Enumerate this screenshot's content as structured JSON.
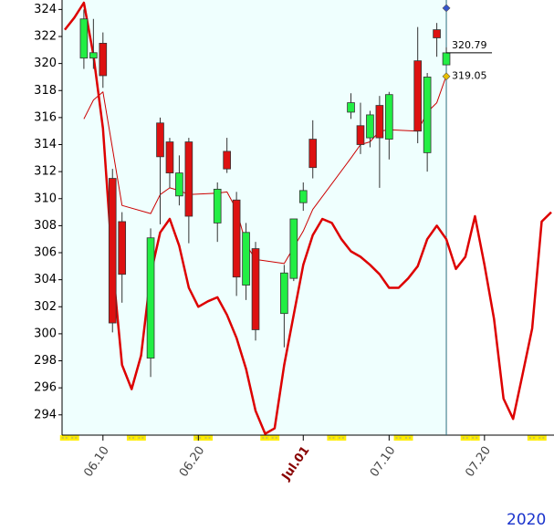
{
  "chart_data": {
    "type": "candlestick",
    "year_label": "2020",
    "x": [
      "2020-06-08",
      "2020-06-09",
      "2020-06-10",
      "2020-06-11",
      "2020-06-12",
      "2020-06-15",
      "2020-06-16",
      "2020-06-17",
      "2020-06-18",
      "2020-06-19",
      "2020-06-22",
      "2020-06-23",
      "2020-06-24",
      "2020-06-25",
      "2020-06-26",
      "2020-06-29",
      "2020-06-30",
      "2020-07-01",
      "2020-07-02",
      "2020-07-06",
      "2020-07-07",
      "2020-07-08",
      "2020-07-09",
      "2020-07-10",
      "2020-07-13",
      "2020-07-14",
      "2020-07-15",
      "2020-07-16"
    ],
    "open": [
      320.4,
      320.4,
      321.5,
      311.5,
      308.3,
      298.2,
      315.6,
      314.2,
      310.2,
      314.2,
      308.2,
      313.5,
      309.9,
      303.6,
      306.3,
      301.5,
      304.1,
      309.7,
      314.4,
      316.4,
      315.4,
      314.5,
      316.9,
      314.4,
      320.2,
      313.4,
      322.5,
      319.9
    ],
    "high": [
      324.0,
      323.3,
      322.3,
      312.2,
      309.0,
      307.8,
      316.0,
      314.5,
      313.2,
      314.5,
      311.2,
      314.5,
      310.5,
      308.2,
      306.8,
      305.1,
      308.5,
      311.2,
      315.8,
      317.8,
      317.1,
      316.5,
      317.6,
      317.9,
      322.7,
      319.3,
      323.0,
      321.2
    ],
    "low": [
      319.6,
      319.6,
      318.2,
      300.1,
      302.3,
      296.8,
      308.1,
      310.8,
      309.5,
      306.7,
      306.8,
      311.9,
      302.8,
      302.5,
      299.5,
      299.0,
      303.9,
      309.1,
      311.5,
      315.9,
      313.3,
      313.8,
      310.8,
      312.9,
      314.1,
      312.0,
      320.5,
      319.9
    ],
    "close": [
      323.3,
      320.8,
      319.1,
      300.8,
      304.4,
      307.1,
      313.1,
      311.9,
      311.9,
      308.7,
      310.7,
      312.2,
      304.2,
      307.5,
      300.3,
      304.5,
      308.5,
      310.6,
      312.3,
      317.1,
      314.0,
      316.2,
      314.5,
      317.7,
      315.0,
      319.0,
      321.9,
      320.79
    ],
    "up_color": "#22ee44",
    "down_color": "#dd1111",
    "overlays": [
      {
        "color": "#cc0000",
        "width": 1,
        "x": [
          "2020-06-08",
          "2020-06-09",
          "2020-06-10",
          "2020-06-11",
          "2020-06-12",
          "2020-06-15",
          "2020-06-16",
          "2020-06-17",
          "2020-06-18",
          "2020-06-19",
          "2020-06-22",
          "2020-06-23",
          "2020-06-24",
          "2020-06-25",
          "2020-06-26",
          "2020-06-29",
          "2020-06-30",
          "2020-07-01",
          "2020-07-02",
          "2020-07-06",
          "2020-07-07",
          "2020-07-08",
          "2020-07-09",
          "2020-07-10",
          "2020-07-13",
          "2020-07-14",
          "2020-07-15",
          "2020-07-16"
        ],
        "values": [
          315.9,
          317.3,
          317.9,
          313.7,
          309.5,
          308.9,
          310.3,
          310.8,
          310.6,
          310.3,
          310.4,
          310.5,
          309.2,
          306.6,
          305.5,
          305.2,
          306.4,
          307.6,
          309.2,
          313.0,
          314.0,
          314.2,
          315.0,
          315.1,
          315.0,
          316.4,
          317.1,
          319.1
        ]
      },
      {
        "color": "#dd0000",
        "width": 2.5,
        "x": [
          "2020-06-06",
          "2020-06-07",
          "2020-06-08",
          "2020-06-09",
          "2020-06-10",
          "2020-06-11",
          "2020-06-12",
          "2020-06-13",
          "2020-06-14",
          "2020-06-15",
          "2020-06-16",
          "2020-06-17",
          "2020-06-18",
          "2020-06-19",
          "2020-06-20",
          "2020-06-21",
          "2020-06-22",
          "2020-06-23",
          "2020-06-24",
          "2020-06-25",
          "2020-06-26",
          "2020-06-27",
          "2020-06-28",
          "2020-06-29",
          "2020-06-30",
          "2020-07-01",
          "2020-07-02",
          "2020-07-03",
          "2020-07-04",
          "2020-07-05",
          "2020-07-06",
          "2020-07-07",
          "2020-07-08",
          "2020-07-09",
          "2020-07-10",
          "2020-07-11",
          "2020-07-12",
          "2020-07-13",
          "2020-07-14",
          "2020-07-15",
          "2020-07-16",
          "2020-07-17",
          "2020-07-18",
          "2020-07-19",
          "2020-07-20",
          "2020-07-21",
          "2020-07-22",
          "2020-07-23",
          "2020-07-24",
          "2020-07-25",
          "2020-07-26",
          "2020-07-27"
        ],
        "values": [
          322.5,
          323.4,
          324.5,
          320.6,
          315.2,
          305.1,
          297.7,
          295.9,
          298.4,
          304.4,
          307.5,
          308.5,
          306.5,
          303.4,
          302.0,
          302.4,
          302.7,
          301.4,
          299.7,
          297.4,
          294.3,
          292.6,
          293.0,
          297.7,
          301.4,
          305.1,
          307.3,
          308.5,
          308.2,
          307.0,
          306.1,
          305.7,
          305.1,
          304.4,
          303.4,
          303.4,
          304.1,
          305.0,
          307.0,
          308.0,
          307.0,
          304.8,
          305.7,
          308.7,
          305.1,
          301.1,
          295.2,
          293.7,
          297.0,
          300.4,
          308.3,
          309.0
        ]
      }
    ],
    "current_date": "2020-07-16",
    "shade_color": "#effffe",
    "annotations": [
      {
        "x": "2020-07-16",
        "value": 324.1,
        "color": "#3355cc"
      },
      {
        "x": "2020-07-16",
        "value": 320.79,
        "label": true,
        "line": true
      },
      {
        "x": "2020-07-16",
        "value": 319.05,
        "color": "#e8c000",
        "label": true
      }
    ],
    "xlim": [
      "2020-06-06",
      "2020-07-27"
    ],
    "xticks": [
      {
        "value": "2020-06-10",
        "label": "06.10"
      },
      {
        "value": "2020-06-20",
        "label": "06.20"
      },
      {
        "value": "2020-07-01",
        "label": "Jul.01",
        "color": "#880000"
      },
      {
        "value": "2020-07-10",
        "label": "07.10"
      },
      {
        "value": "2020-07-20",
        "label": "07.20"
      }
    ],
    "ylim": [
      292.5,
      324.7
    ],
    "yticks": [
      294,
      296,
      298,
      300,
      302,
      304,
      306,
      308,
      310,
      312,
      314,
      316,
      318,
      320,
      322,
      324
    ],
    "weekend_color": "#ffee00"
  }
}
